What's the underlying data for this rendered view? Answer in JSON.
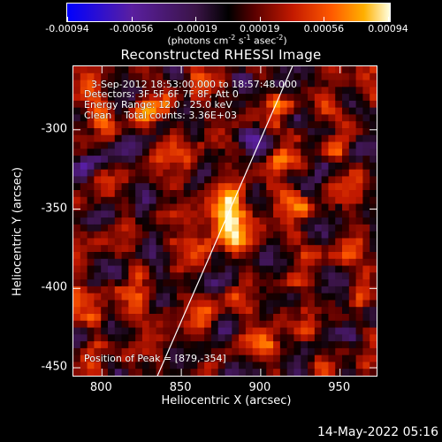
{
  "colorbar": {
    "tick_labels": [
      "-0.00094",
      "-0.00056",
      "-0.00019",
      "0.00019",
      "0.00056",
      "0.00094"
    ],
    "units_prefix": "(photons cm",
    "units_exp1": "-2",
    "units_mid1": " s",
    "units_exp2": "-1",
    "units_mid2": " asec",
    "units_exp3": "-2",
    "units_suffix": ")"
  },
  "image_title": "Reconstructed RHESSI Image",
  "info": {
    "time_range": "3-Sep-2012 18:53:00.000 to 18:57:48.000",
    "detectors": "Detectors: 3F 5F 6F 7F 8F, Att 0",
    "energy_range": "Energy Range: 12.0 - 25.0 keV",
    "clean": "Clean    Total counts: 3.36E+03",
    "peak_position": "Position of Peak = [879,-354]"
  },
  "axes": {
    "x_label": "Heliocentric X (arcsec)",
    "y_label": "Heliocentric Y (arcsec)",
    "x_ticks": [
      "800",
      "850",
      "900",
      "950"
    ],
    "y_ticks": [
      "-300",
      "-350",
      "-400",
      "-450"
    ],
    "x_tick_values": [
      800,
      850,
      900,
      950
    ],
    "y_tick_values": [
      -300,
      -350,
      -400,
      -450
    ],
    "xlim": [
      782,
      973
    ],
    "ylim": [
      -455,
      -260
    ]
  },
  "peak": {
    "x": 879,
    "y": -354
  },
  "limb_line": {
    "x1": 835,
    "y1": -455,
    "x2": 920,
    "y2": -260
  },
  "footer_timestamp": "14-May-2022 05:16",
  "colors": {
    "background": "#000000",
    "foreground": "#ffffff",
    "colormap": [
      "#0000ff",
      "#5a1fa0",
      "#3a1446",
      "#000000",
      "#5a0000",
      "#c41a00",
      "#ff5a00",
      "#ffb000",
      "#ffffe0"
    ]
  }
}
